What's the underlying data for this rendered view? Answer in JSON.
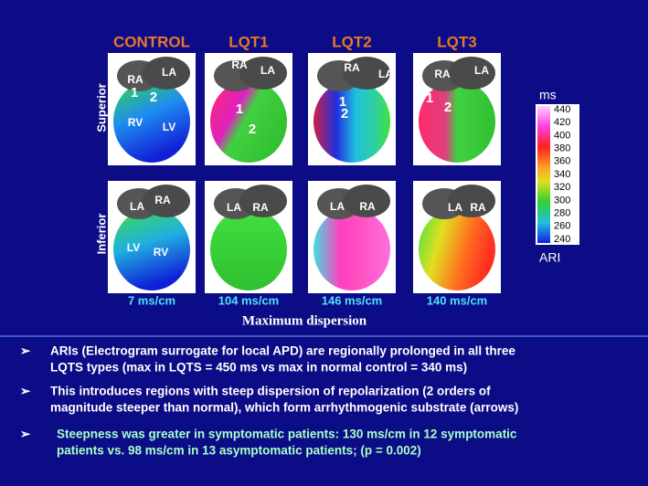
{
  "columns": [
    "CONTROL",
    "LQT1",
    "LQT2",
    "LQT3"
  ],
  "rows": [
    "Superior",
    "Inferior"
  ],
  "panels": {
    "superior": [
      {
        "labels": [
          "RA",
          "LA",
          "1",
          "2",
          "RV",
          "LV"
        ]
      },
      {
        "labels": [
          "RA",
          "LA",
          "1",
          "2"
        ]
      },
      {
        "labels": [
          "RA",
          "LA",
          "1",
          "2"
        ]
      },
      {
        "labels": [
          "RA",
          "LA",
          "1",
          "2"
        ]
      }
    ],
    "inferior": [
      {
        "labels": [
          "LA",
          "RA",
          "LV",
          "RV"
        ]
      },
      {
        "labels": [
          "LA",
          "RA"
        ]
      },
      {
        "labels": [
          "LA",
          "RA"
        ]
      },
      {
        "labels": [
          "LA",
          "RA"
        ]
      }
    ]
  },
  "dispersion": [
    "7 ms/cm",
    "104 ms/cm",
    "146 ms/cm",
    "140 ms/cm"
  ],
  "dispersion_caption": "Maximum dispersion",
  "colorbar": {
    "unit": "ms",
    "ticks": [
      440,
      420,
      400,
      380,
      360,
      340,
      320,
      300,
      280,
      260,
      240
    ],
    "label": "ARI"
  },
  "bullets": [
    [
      "ARIs  (Electrogram surrogate for local APD) are regionally prolonged in all three",
      "LQTS types (max in LQTS = 450 ms vs max in normal control = 340 ms)"
    ],
    [
      "This introduces regions with steep dispersion of repolarization (2 orders of",
      "magnitude steeper than normal), which form arrhythmogenic substrate (arrows)"
    ],
    [
      "Steepness was greater in symptomatic patients: 130 ms/cm in 12 symptomatic",
      "patients  vs.  98 ms/cm in 13 asymptomatic patients; (p = 0.002)"
    ]
  ]
}
